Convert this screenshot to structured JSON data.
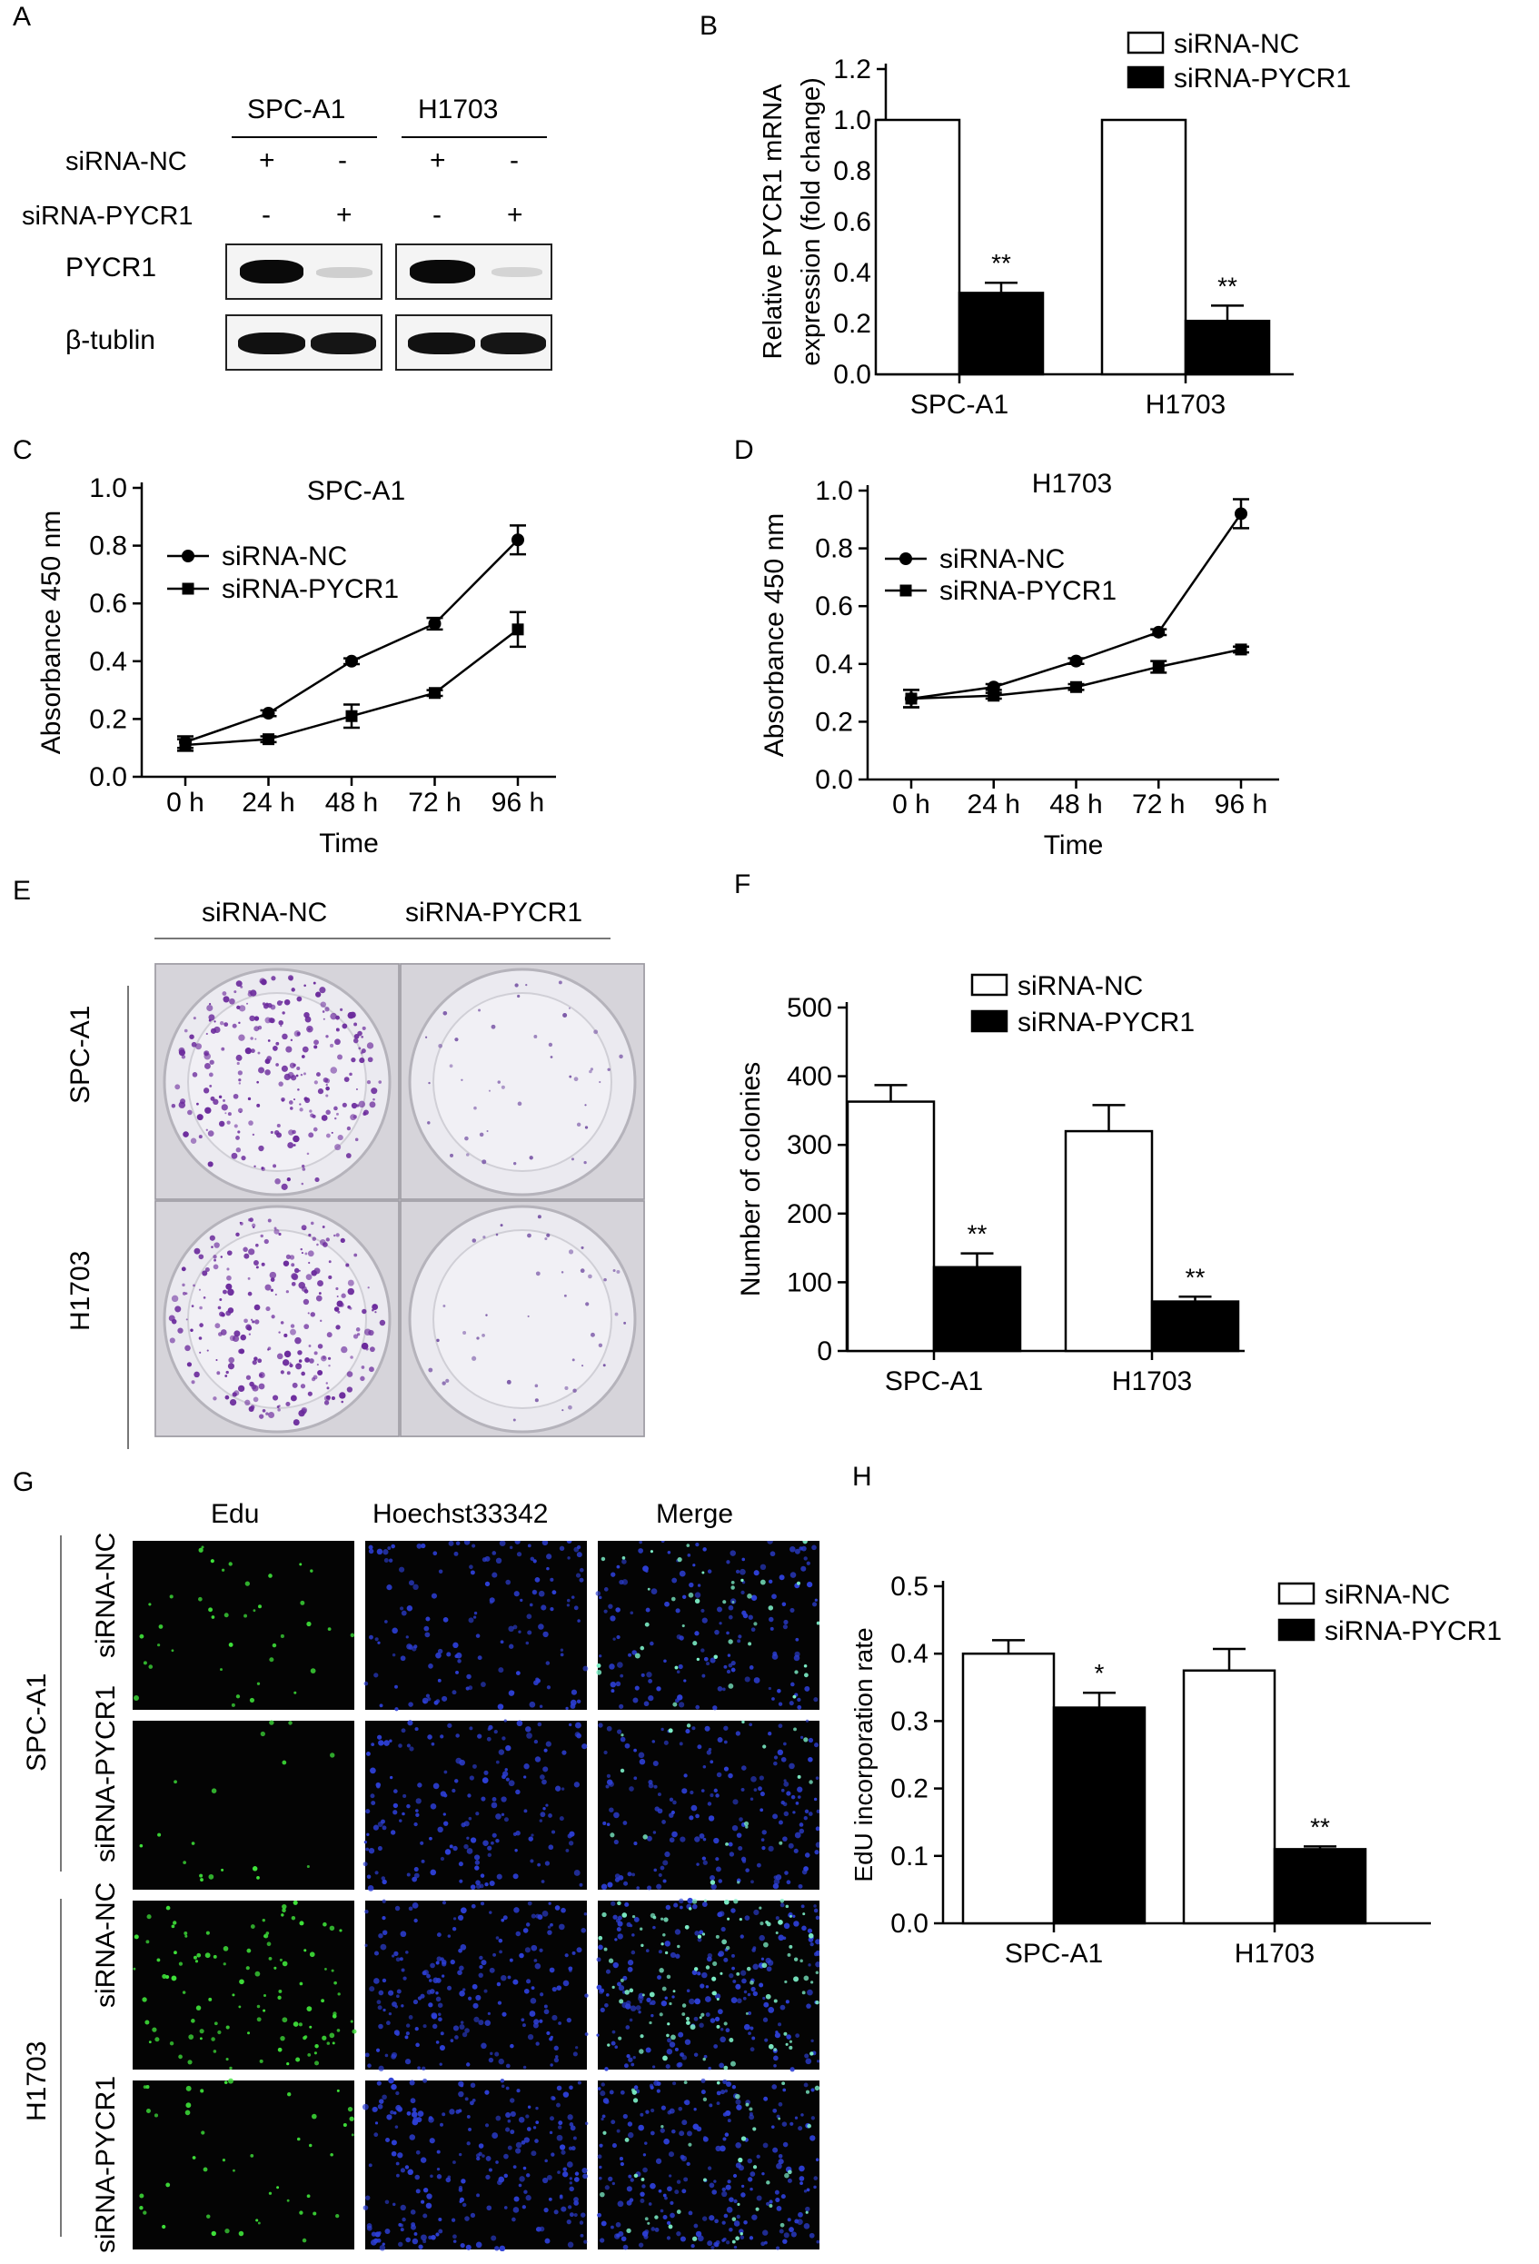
{
  "panels": {
    "A": {
      "letter": "A",
      "cell_lines": [
        "SPC-A1",
        "H1703"
      ],
      "row_labels": [
        "siRNA-NC",
        "siRNA-PYCR1"
      ],
      "signs": {
        "nc": [
          "+",
          "-",
          "+",
          "-"
        ],
        "pycr1": [
          "-",
          "+",
          "-",
          "+"
        ]
      },
      "blot_labels": [
        "PYCR1",
        "β-tublin"
      ]
    },
    "E": {
      "letter": "E",
      "column_labels": [
        "siRNA-NC",
        "siRNA-PYCR1"
      ],
      "row_labels": [
        "SPC-A1",
        "H1703"
      ]
    },
    "G": {
      "letter": "G",
      "column_labels": [
        "Edu",
        "Hoechst33342",
        "Merge"
      ],
      "group_labels": [
        "SPC-A1",
        "H1703"
      ],
      "row_labels": [
        "siRNA-NC",
        "siRNA-PYCR1",
        "siRNA-NC",
        "siRNA-PYCR1"
      ]
    }
  },
  "chart_data": [
    {
      "id": "B",
      "letter": "B",
      "type": "bar",
      "categories": [
        "SPC-A1",
        "H1703"
      ],
      "series": [
        {
          "name": "siRNA-NC",
          "values": [
            1.0,
            1.0
          ],
          "errors": [
            0,
            0
          ],
          "fill": "#ffffff"
        },
        {
          "name": "siRNA-PYCR1",
          "values": [
            0.32,
            0.21
          ],
          "errors": [
            0.04,
            0.06
          ],
          "fill": "#000000"
        }
      ],
      "significance": [
        "**",
        "**"
      ],
      "ylabel_lines": [
        "Relative PYCR1 mRNA",
        "expression (fold change)"
      ],
      "ylim": [
        0,
        1.2
      ],
      "yticks": [
        "0.0",
        "0.2",
        "0.4",
        "0.6",
        "0.8",
        "1.0",
        "1.2"
      ],
      "legend": "top-right"
    },
    {
      "id": "C",
      "letter": "C",
      "type": "line",
      "title": "SPC-A1",
      "x": [
        "0 h",
        "24 h",
        "48 h",
        "72 h",
        "96 h"
      ],
      "series": [
        {
          "name": "siRNA-NC",
          "marker": "circle",
          "values": [
            0.12,
            0.22,
            0.4,
            0.53,
            0.82
          ],
          "errors": [
            0.02,
            0.01,
            0.01,
            0.02,
            0.05
          ]
        },
        {
          "name": "siRNA-PYCR1",
          "marker": "square",
          "values": [
            0.11,
            0.13,
            0.21,
            0.29,
            0.51
          ],
          "errors": [
            0.02,
            0.01,
            0.04,
            0.01,
            0.06
          ]
        }
      ],
      "xlabel": "Time",
      "ylabel": "Absorbance 450 nm",
      "ylim": [
        0,
        1.0
      ],
      "yticks": [
        "0.0",
        "0.2",
        "0.4",
        "0.6",
        "0.8",
        "1.0"
      ],
      "legend": "top-left"
    },
    {
      "id": "D",
      "letter": "D",
      "type": "line",
      "title": "H1703",
      "x": [
        "0 h",
        "24 h",
        "48 h",
        "72 h",
        "96 h"
      ],
      "series": [
        {
          "name": "siRNA-NC",
          "marker": "circle",
          "values": [
            0.28,
            0.32,
            0.41,
            0.51,
            0.92
          ],
          "errors": [
            0.03,
            0.01,
            0.01,
            0.01,
            0.05
          ]
        },
        {
          "name": "siRNA-PYCR1",
          "marker": "square",
          "values": [
            0.28,
            0.29,
            0.32,
            0.39,
            0.45
          ],
          "errors": [
            0.03,
            0.01,
            0.01,
            0.02,
            0.01
          ]
        }
      ],
      "xlabel": "Time",
      "ylabel": "Absorbance 450 nm",
      "ylim": [
        0,
        1.0
      ],
      "yticks": [
        "0.0",
        "0.2",
        "0.4",
        "0.6",
        "0.8",
        "1.0"
      ],
      "legend": "top-left"
    },
    {
      "id": "F",
      "letter": "F",
      "type": "bar",
      "categories": [
        "SPC-A1",
        "H1703"
      ],
      "series": [
        {
          "name": "siRNA-NC",
          "values": [
            363,
            320
          ],
          "errors": [
            24,
            38
          ],
          "fill": "#ffffff"
        },
        {
          "name": "siRNA-PYCR1",
          "values": [
            122,
            72
          ],
          "errors": [
            20,
            7
          ],
          "fill": "#000000"
        }
      ],
      "significance": [
        "**",
        "**"
      ],
      "ylabel_lines": [
        "Number of colonies"
      ],
      "ylim": [
        0,
        500
      ],
      "yticks": [
        "0",
        "100",
        "200",
        "300",
        "400",
        "500"
      ],
      "legend": "top-right"
    },
    {
      "id": "H",
      "letter": "H",
      "type": "bar",
      "categories": [
        "SPC-A1",
        "H1703"
      ],
      "series": [
        {
          "name": "siRNA-NC",
          "values": [
            0.4,
            0.375
          ],
          "errors": [
            0.02,
            0.032
          ],
          "fill": "#ffffff"
        },
        {
          "name": "siRNA-PYCR1",
          "values": [
            0.32,
            0.11
          ],
          "errors": [
            0.022,
            0.004
          ],
          "fill": "#000000"
        }
      ],
      "significance": [
        "*",
        "**"
      ],
      "ylabel_lines": [
        "EdU incorporation rate"
      ],
      "ylim": [
        0,
        0.5
      ],
      "yticks": [
        "0.0",
        "0.1",
        "0.2",
        "0.3",
        "0.4",
        "0.5"
      ],
      "legend": "top-right"
    }
  ]
}
